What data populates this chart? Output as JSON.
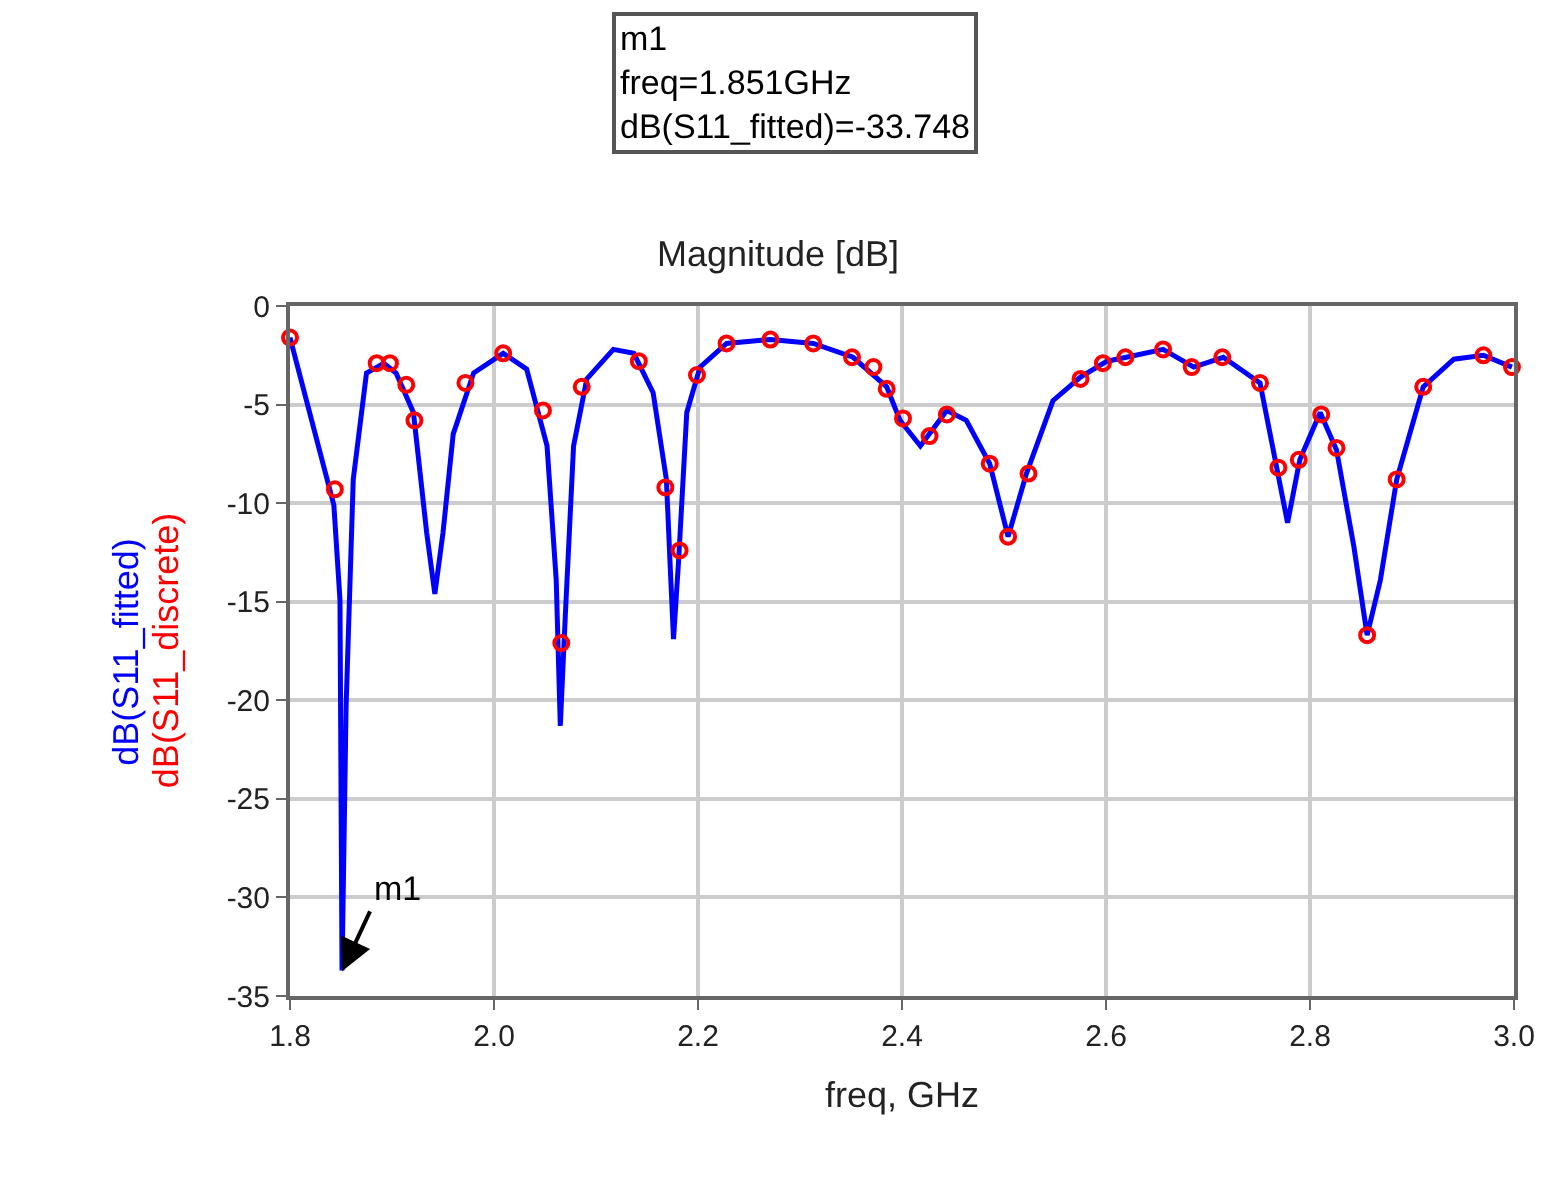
{
  "chart_data": {
    "type": "line",
    "title": "Magnitude [dB]",
    "xlabel": "freq, GHz",
    "xlim": [
      1.8,
      3.0
    ],
    "xticks": [
      1.8,
      {
        "value": 2.0,
        "label": "2.0"
      },
      2.2,
      2.4,
      2.6,
      2.8,
      {
        "value": 3.0,
        "label": "3.0"
      }
    ],
    "ylim": [
      -35,
      0
    ],
    "yticks": [
      0,
      -5,
      -10,
      -15,
      -20,
      -25,
      -30,
      -35
    ],
    "grid": true,
    "legend": false,
    "series": [
      {
        "name": "dB(S11_fitted)",
        "marker": "none",
        "color": "#0000ff",
        "x": [
          1.8,
          1.843,
          1.849,
          1.851,
          1.855,
          1.862,
          1.875,
          1.892,
          1.904,
          1.921,
          1.934,
          1.942,
          1.95,
          1.96,
          1.98,
          2.009,
          2.032,
          2.052,
          2.061,
          2.065,
          2.07,
          2.078,
          2.091,
          2.117,
          2.137,
          2.156,
          2.169,
          2.173,
          2.176,
          2.181,
          2.189,
          2.202,
          2.228,
          2.271,
          2.313,
          2.352,
          2.385,
          2.398,
          2.418,
          2.444,
          2.463,
          2.486,
          2.504,
          2.522,
          2.548,
          2.575,
          2.601,
          2.62,
          2.656,
          2.686,
          2.715,
          2.751,
          2.767,
          2.778,
          2.79,
          2.81,
          2.826,
          2.843,
          2.856,
          2.869,
          2.885,
          2.911,
          2.941,
          2.97,
          2.998
        ],
        "values": [
          -1.6,
          -10.1,
          -14.9,
          -33.7,
          -20.3,
          -8.8,
          -3.4,
          -2.9,
          -3.4,
          -5.4,
          -11.5,
          -14.6,
          -11.5,
          -6.5,
          -3.4,
          -2.4,
          -3.2,
          -7.1,
          -13.9,
          -21.3,
          -15.6,
          -7.1,
          -3.7,
          -2.2,
          -2.4,
          -4.4,
          -8.8,
          -13.5,
          -16.9,
          -12.9,
          -5.4,
          -3.1,
          -1.9,
          -1.7,
          -1.9,
          -2.6,
          -4.1,
          -5.8,
          -7.1,
          -5.3,
          -5.8,
          -8.0,
          -11.7,
          -8.5,
          -4.8,
          -3.6,
          -2.8,
          -2.6,
          -2.2,
          -3.1,
          -2.6,
          -3.9,
          -8.1,
          -11.0,
          -7.8,
          -5.4,
          -7.3,
          -12.2,
          -16.7,
          -13.9,
          -8.8,
          -4.1,
          -2.7,
          -2.5,
          -3.1
        ]
      },
      {
        "name": "dB(S11_discrete)",
        "type": "scatter",
        "marker": "circle",
        "color": "#ff0000",
        "x": [
          1.8,
          1.844,
          1.885,
          1.898,
          1.914,
          1.922,
          1.972,
          2.009,
          2.048,
          2.066,
          2.086,
          2.142,
          2.168,
          2.182,
          2.199,
          2.228,
          2.271,
          2.313,
          2.351,
          2.372,
          2.385,
          2.401,
          2.427,
          2.444,
          2.486,
          2.504,
          2.524,
          2.575,
          2.597,
          2.619,
          2.656,
          2.684,
          2.714,
          2.751,
          2.769,
          2.789,
          2.811,
          2.826,
          2.856,
          2.885,
          2.911,
          2.97,
          2.998
        ],
        "values": [
          -1.6,
          -9.3,
          -2.9,
          -2.9,
          -4.0,
          -5.8,
          -3.9,
          -2.4,
          -5.3,
          -17.1,
          -4.1,
          -2.8,
          -9.2,
          -12.4,
          -3.5,
          -1.9,
          -1.7,
          -1.9,
          -2.6,
          -3.1,
          -4.2,
          -5.7,
          -6.6,
          -5.5,
          -8.0,
          -11.7,
          -8.5,
          -3.7,
          -2.9,
          -2.6,
          -2.2,
          -3.1,
          -2.6,
          -3.9,
          -8.2,
          -7.8,
          -5.5,
          -7.2,
          -16.7,
          -8.8,
          -4.1,
          -2.5,
          -3.1
        ]
      }
    ],
    "annotations": [
      "m1\nfreq=1.851GHz\ndB(S11_fitted)=-33.748",
      {
        "text": "m1",
        "x": 1.851,
        "y": -33.748
      }
    ]
  }
}
